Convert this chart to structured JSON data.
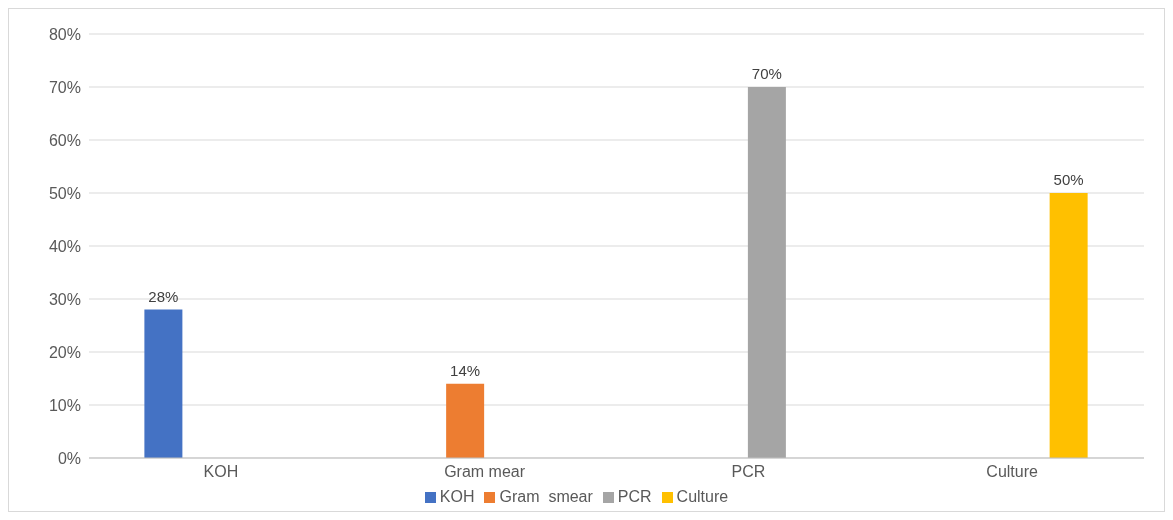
{
  "chart_data": {
    "type": "bar",
    "categories": [
      "KOH",
      "Gram mear",
      "PCR",
      "Culture"
    ],
    "series": [
      {
        "name": "KOH",
        "color": "#4472c4",
        "values": [
          28,
          null,
          null,
          null
        ],
        "value_labels": [
          "28%",
          null,
          null,
          null
        ]
      },
      {
        "name": "Gram  smear",
        "color": "#ed7d31",
        "values": [
          null,
          14,
          null,
          null
        ],
        "value_labels": [
          null,
          "14%",
          null,
          null
        ]
      },
      {
        "name": "PCR",
        "color": "#a5a5a5",
        "values": [
          null,
          null,
          70,
          null
        ],
        "value_labels": [
          null,
          null,
          "70%",
          null
        ]
      },
      {
        "name": "Culture",
        "color": "#ffc000",
        "values": [
          null,
          null,
          null,
          50
        ],
        "value_labels": [
          null,
          null,
          null,
          "50%"
        ]
      }
    ],
    "ylim": [
      0,
      80
    ],
    "yticks": [
      {
        "value": 0,
        "label": "0%"
      },
      {
        "value": 10,
        "label": "10%"
      },
      {
        "value": 20,
        "label": "20%"
      },
      {
        "value": 30,
        "label": "30%"
      },
      {
        "value": 40,
        "label": "40%"
      },
      {
        "value": 50,
        "label": "50%"
      },
      {
        "value": 60,
        "label": "60%"
      },
      {
        "value": 70,
        "label": "70%"
      },
      {
        "value": 80,
        "label": "80%"
      }
    ],
    "grid": "y",
    "legend": "bottom"
  }
}
